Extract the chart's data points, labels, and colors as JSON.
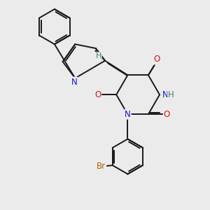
{
  "bg_color": "#ebebeb",
  "bond_color": "#1a1a1a",
  "bond_lw": 1.4,
  "atom_colors": {
    "N": "#1919cc",
    "O": "#cc1919",
    "Br": "#b85c00",
    "H": "#3d8080",
    "C": "#1a1a1a"
  },
  "font_size": 8.5
}
